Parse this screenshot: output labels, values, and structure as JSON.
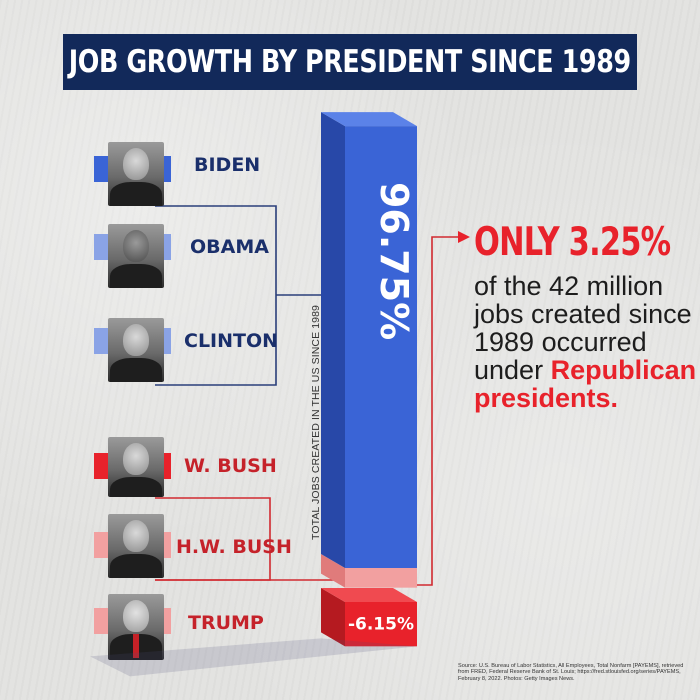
{
  "title": "JOB GROWTH BY PRESIDENT SINCE 1989",
  "presidents": [
    {
      "name": "BIDEN",
      "party": "democrat"
    },
    {
      "name": "OBAMA",
      "party": "democrat"
    },
    {
      "name": "CLINTON",
      "party": "democrat"
    },
    {
      "name": "W. BUSH",
      "party": "republican"
    },
    {
      "name": "H.W. BUSH",
      "party": "republican"
    },
    {
      "name": "TRUMP",
      "party": "republican"
    }
  ],
  "colors": {
    "democrat": "#3a64d6",
    "democrat_light": "#8aa3e6",
    "republican": "#e8222b",
    "republican_light": "#f2a0a0",
    "title_bg": "#12295a"
  },
  "chart_data": {
    "type": "bar",
    "axis_label": "TOTAL JOBS CREATED IN THE US SINCE 1989",
    "segments": [
      {
        "name": "Democratic presidents",
        "value": 96.75,
        "label": "96.75%"
      },
      {
        "name": "Republican presidents (W. Bush, H.W. Bush)",
        "value": 9.4,
        "label": ""
      },
      {
        "name": "Trump",
        "value": -6.15,
        "label": "-6.15%"
      }
    ]
  },
  "callout": {
    "headline": "ONLY 3.25%",
    "body_plain": "of the 42 million jobs created since 1989 occurred under",
    "body_emphasis": "Republican presidents."
  },
  "source": "Source: U.S. Bureau of Labor Statistics, All Employees, Total Nonfarm [PAYEMS], retrieved from FRED, Federal Reserve Bank of St. Louis; https://fred.stlouisfed.org/series/PAYEMS, February 8, 2022. Photos: Getty Images News."
}
